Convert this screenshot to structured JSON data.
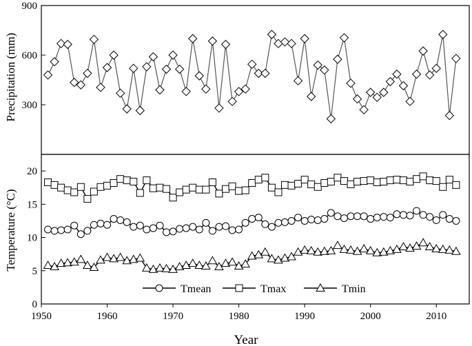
{
  "chart_data": [
    {
      "type": "line",
      "ylabel": "Precipitation (mm)",
      "xlim": [
        1950,
        2015
      ],
      "ylim": [
        0,
        900
      ],
      "yticks": [
        300,
        600,
        900
      ],
      "grid": false,
      "series": [
        {
          "marker": "diamond",
          "x": [
            1951,
            1952,
            1953,
            1954,
            1955,
            1956,
            1957,
            1958,
            1959,
            1960,
            1961,
            1962,
            1963,
            1964,
            1965,
            1966,
            1967,
            1968,
            1969,
            1970,
            1971,
            1972,
            1973,
            1974,
            1975,
            1976,
            1977,
            1978,
            1979,
            1980,
            1981,
            1982,
            1983,
            1984,
            1985,
            1986,
            1987,
            1988,
            1989,
            1990,
            1991,
            1992,
            1993,
            1994,
            1995,
            1996,
            1997,
            1998,
            1999,
            2000,
            2001,
            2002,
            2003,
            2004,
            2005,
            2006,
            2007,
            2008,
            2009,
            2010,
            2011,
            2012,
            2013
          ],
          "values": [
            480,
            560,
            670,
            665,
            435,
            420,
            490,
            695,
            405,
            525,
            600,
            370,
            275,
            520,
            265,
            530,
            590,
            390,
            515,
            600,
            515,
            380,
            700,
            475,
            395,
            685,
            280,
            665,
            320,
            380,
            395,
            545,
            490,
            490,
            725,
            670,
            680,
            670,
            445,
            700,
            350,
            540,
            510,
            215,
            575,
            705,
            430,
            335,
            270,
            375,
            345,
            375,
            440,
            485,
            415,
            320,
            485,
            625,
            480,
            520,
            725,
            235,
            580
          ]
        }
      ]
    },
    {
      "type": "line",
      "xlabel": "Year",
      "ylabel": "Temperature (°C)",
      "xlim": [
        1950,
        2015
      ],
      "ylim": [
        0,
        22.5
      ],
      "xticks": [
        1950,
        1960,
        1970,
        1980,
        1990,
        2000,
        2010
      ],
      "yticks": [
        0,
        5,
        10,
        15,
        20
      ],
      "legend": "bottom-center",
      "grid": false,
      "x": [
        1951,
        1952,
        1953,
        1954,
        1955,
        1956,
        1957,
        1958,
        1959,
        1960,
        1961,
        1962,
        1963,
        1964,
        1965,
        1966,
        1967,
        1968,
        1969,
        1970,
        1971,
        1972,
        1973,
        1974,
        1975,
        1976,
        1977,
        1978,
        1979,
        1980,
        1981,
        1982,
        1983,
        1984,
        1985,
        1986,
        1987,
        1988,
        1989,
        1990,
        1991,
        1992,
        1993,
        1994,
        1995,
        1996,
        1997,
        1998,
        1999,
        2000,
        2001,
        2002,
        2003,
        2004,
        2005,
        2006,
        2007,
        2008,
        2009,
        2010,
        2011,
        2012,
        2013
      ],
      "series": [
        {
          "name": "Tmean",
          "marker": "circle",
          "values": [
            11.2,
            11.0,
            11.1,
            11.2,
            11.8,
            10.5,
            11.0,
            11.9,
            12.1,
            11.9,
            12.8,
            12.6,
            12.3,
            11.6,
            11.8,
            11.2,
            11.4,
            11.8,
            10.8,
            10.9,
            11.3,
            11.4,
            11.6,
            11.2,
            12.2,
            11.0,
            11.6,
            11.7,
            11.1,
            11.2,
            12.2,
            12.8,
            13.0,
            12.0,
            11.6,
            12.2,
            12.3,
            12.5,
            13.0,
            12.5,
            12.7,
            12.6,
            12.8,
            13.7,
            13.2,
            12.9,
            13.2,
            13.2,
            13.2,
            12.8,
            13.0,
            13.1,
            13.0,
            13.5,
            13.4,
            13.3,
            14.0,
            13.4,
            13.1,
            12.6,
            13.4,
            12.8,
            12.5
          ]
        },
        {
          "name": "Tmax",
          "marker": "square",
          "values": [
            18.3,
            17.9,
            17.5,
            17.1,
            16.8,
            17.6,
            15.8,
            16.9,
            17.6,
            17.8,
            18.2,
            18.8,
            18.6,
            18.4,
            16.7,
            18.6,
            17.4,
            17.5,
            17.3,
            16.0,
            16.8,
            17.2,
            17.5,
            17.2,
            17.2,
            18.3,
            16.6,
            17.3,
            17.7,
            17.0,
            17.1,
            18.2,
            18.7,
            19.0,
            17.5,
            16.8,
            17.9,
            17.8,
            18.1,
            18.7,
            18.0,
            17.6,
            18.2,
            18.4,
            19.0,
            18.5,
            18.0,
            18.4,
            18.5,
            18.6,
            18.3,
            18.4,
            18.6,
            18.7,
            18.6,
            18.4,
            18.8,
            19.2,
            18.6,
            18.5,
            17.6,
            18.7,
            17.9
          ]
        },
        {
          "name": "Tmin",
          "marker": "triangle",
          "values": [
            5.8,
            5.6,
            6.1,
            6.2,
            6.3,
            6.7,
            5.8,
            5.5,
            6.6,
            7.0,
            6.8,
            7.0,
            6.5,
            6.7,
            6.9,
            5.4,
            5.2,
            5.4,
            5.3,
            5.2,
            5.6,
            5.8,
            6.1,
            5.8,
            5.7,
            6.5,
            5.6,
            6.1,
            6.3,
            5.7,
            6.0,
            7.2,
            7.4,
            7.8,
            6.8,
            6.6,
            6.9,
            7.1,
            7.8,
            8.1,
            8.0,
            7.8,
            7.9,
            8.0,
            8.8,
            8.2,
            8.1,
            7.9,
            8.3,
            8.0,
            7.7,
            7.8,
            8.0,
            8.2,
            8.6,
            8.4,
            8.7,
            9.2,
            8.6,
            8.3,
            8.2,
            8.1,
            7.9
          ]
        }
      ]
    }
  ]
}
